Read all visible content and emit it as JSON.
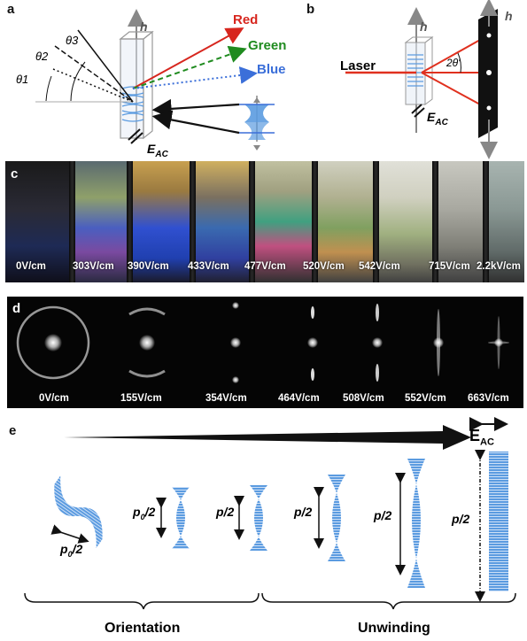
{
  "panel_letters": {
    "a": "a",
    "b": "b",
    "c": "c",
    "d": "d",
    "e": "e"
  },
  "panel_a": {
    "axis_label": "h",
    "angles": [
      "θ1",
      "θ2",
      "θ3"
    ],
    "rays": [
      {
        "label": "Red",
        "color": "#d7261e"
      },
      {
        "label": "Green",
        "color": "#1f8b1f"
      },
      {
        "label": "Blue",
        "color": "#3b6fd9"
      }
    ],
    "field_label": "EAC"
  },
  "panel_b": {
    "laser_label": "Laser",
    "axis_label": "h",
    "angle_label": "2θ'",
    "field_label": "EAC",
    "laser_color": "#e0301e"
  },
  "panel_c": {
    "labels": [
      "0V/cm",
      "303V/cm",
      "390V/cm",
      "433V/cm",
      "477V/cm",
      "520V/cm",
      "542V/cm",
      "715V/cm",
      "2.2kV/cm"
    ]
  },
  "panel_d": {
    "labels": [
      "0V/cm",
      "155V/cm",
      "354V/cm",
      "464V/cm",
      "508V/cm",
      "552V/cm",
      "663V/cm"
    ]
  },
  "panel_e": {
    "field_label": "EAC",
    "pitch_labels": [
      "p0/2",
      "p0/2",
      "p/2",
      "p/2",
      "p/2",
      "p/2"
    ],
    "groups": [
      "Orientation",
      "Unwinding"
    ],
    "helix_color": "#5b9be0"
  }
}
